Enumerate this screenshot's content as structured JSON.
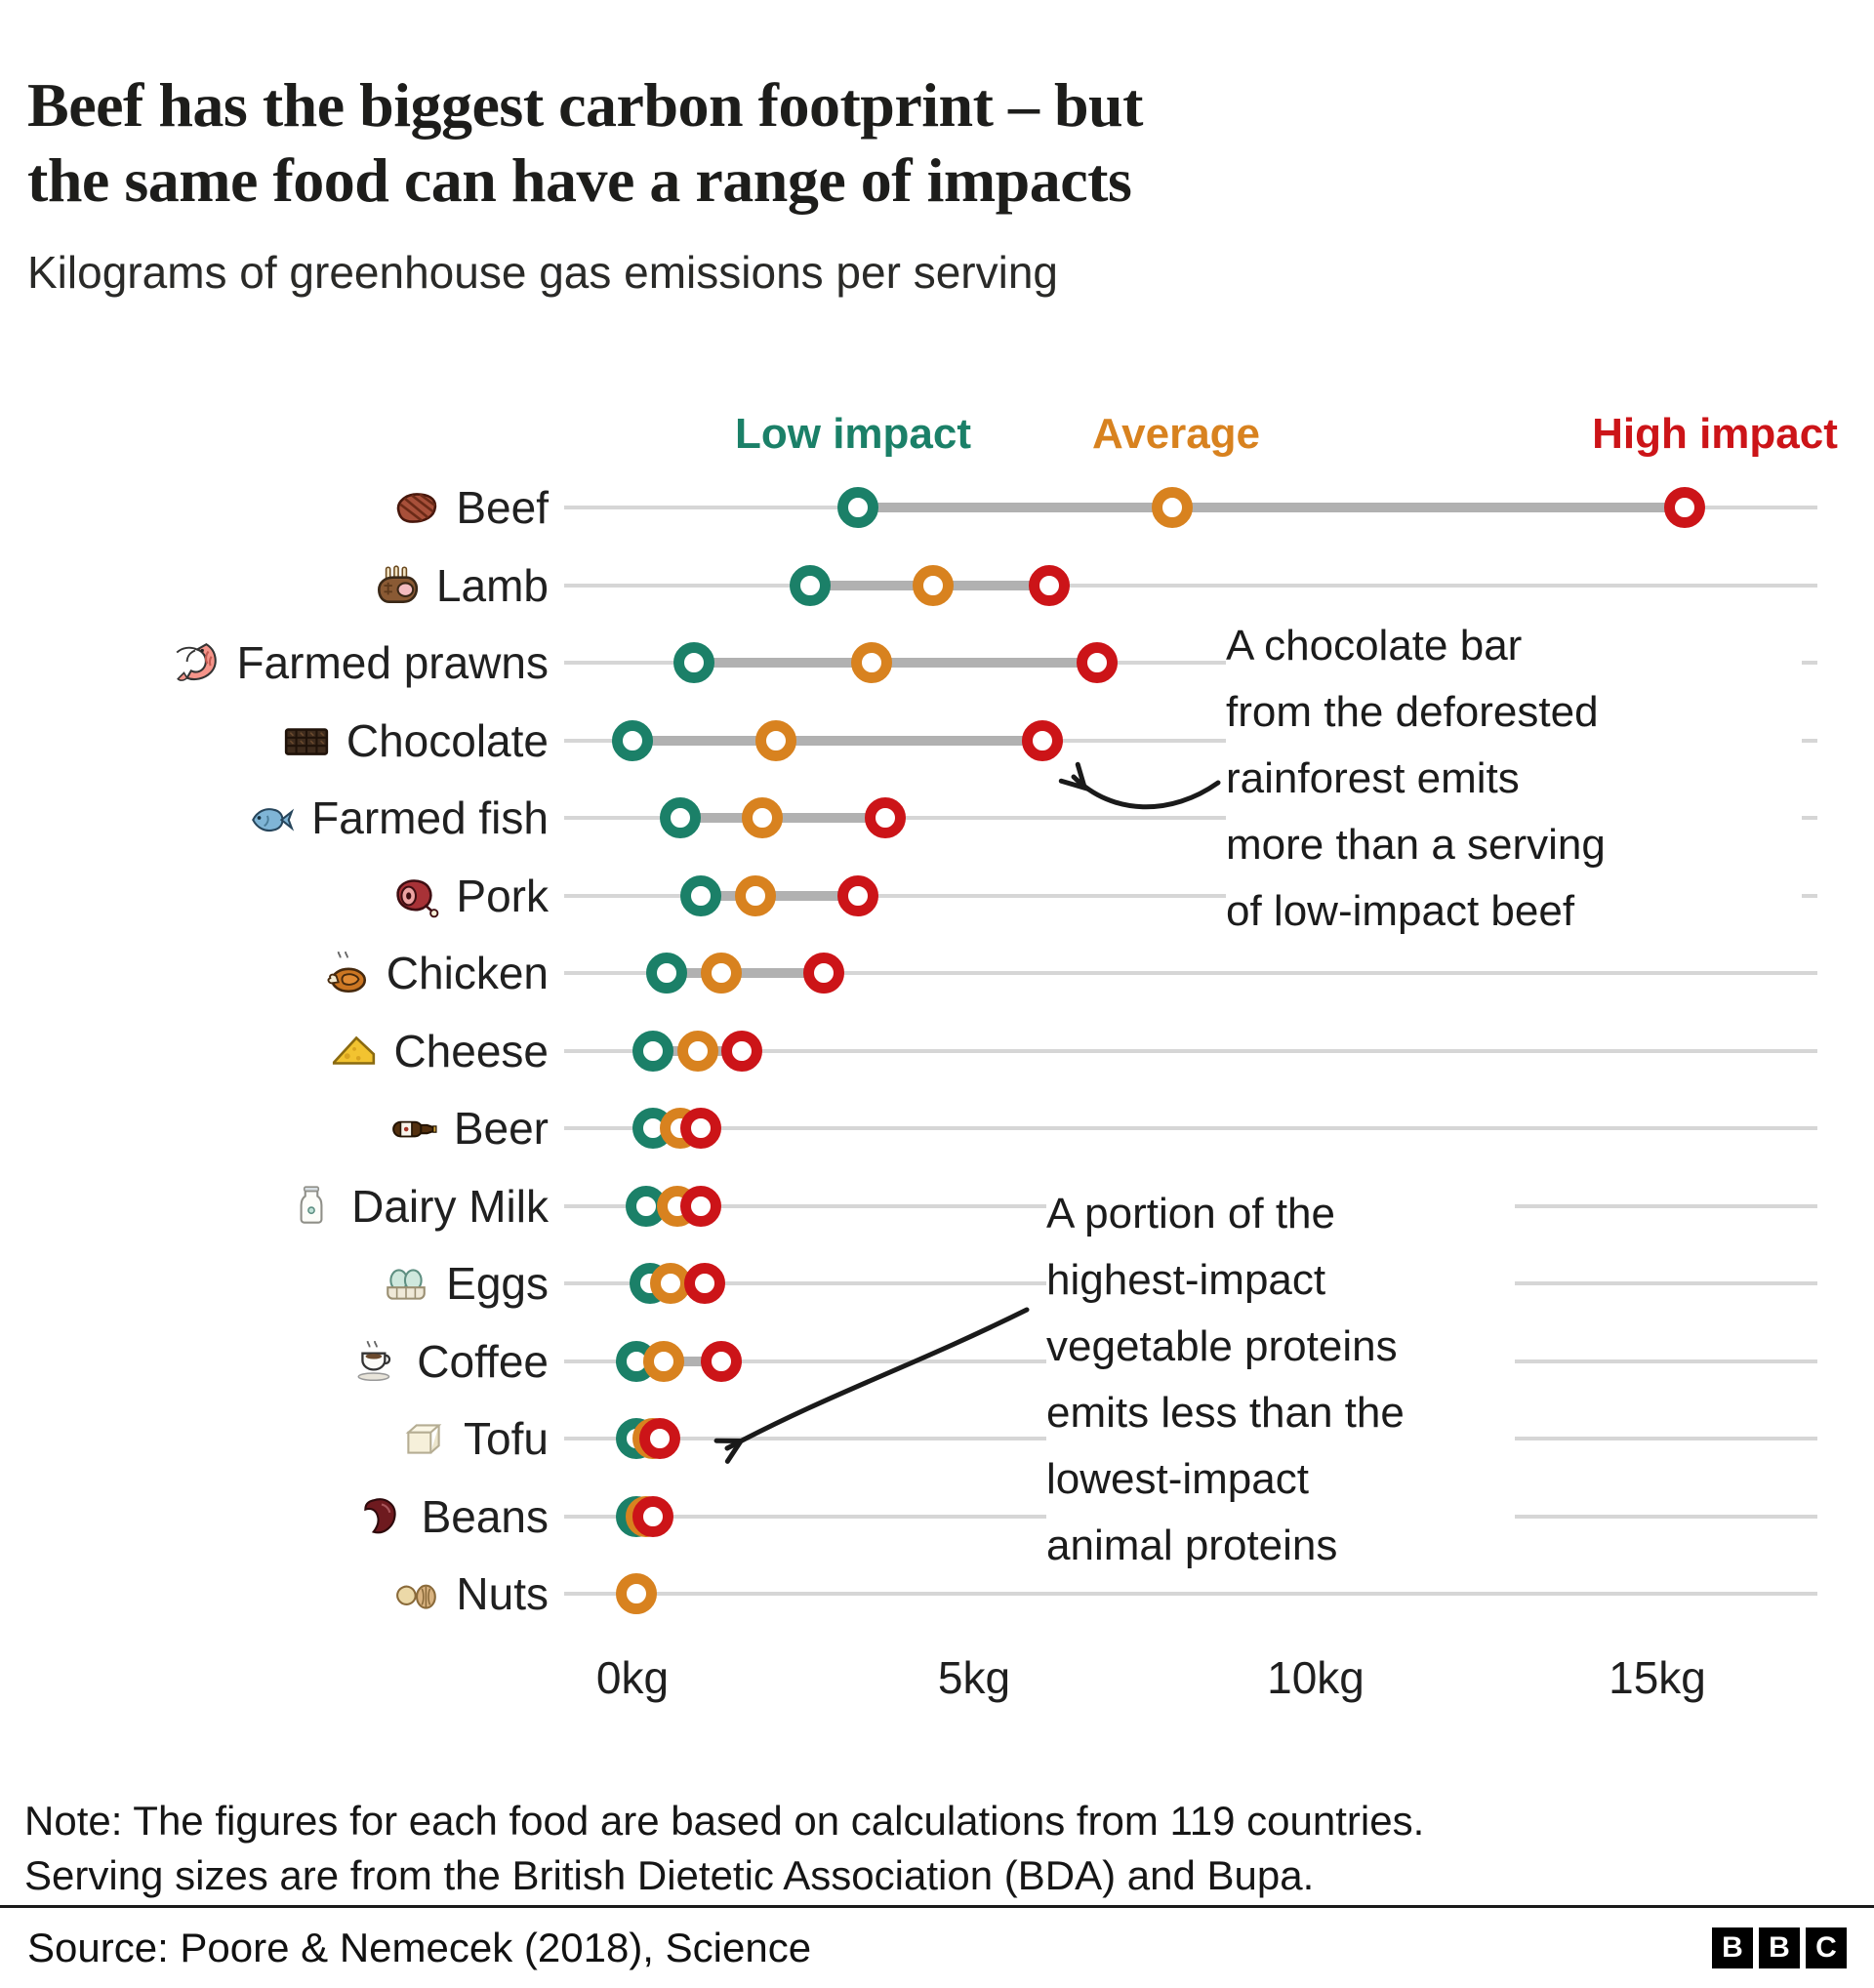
{
  "header": {
    "title_lines": [
      "Beef has the biggest carbon footprint – but",
      "the same food can have a range of impacts"
    ],
    "subtitle": "Kilograms of greenhouse gas emissions per serving"
  },
  "colors": {
    "low": "#1b8068",
    "average": "#d8821f",
    "high": "#cc1418",
    "bar": "#b1b1b1",
    "gridline": "#d6d6d6"
  },
  "chart_data": {
    "type": "dumbbell",
    "title": "Beef has the biggest carbon footprint – but the same food can have a range of impacts",
    "subtitle": "Kilograms of greenhouse gas emissions per serving",
    "xlabel": "kg of greenhouse gas emissions per serving",
    "legend_position": "top",
    "grid": true,
    "series_labels": {
      "low": "Low impact",
      "average": "Average",
      "high": "High impact"
    },
    "x_ticks": [
      {
        "label": "0kg",
        "value": 0
      },
      {
        "label": "5kg",
        "value": 5
      },
      {
        "label": "10kg",
        "value": 10
      },
      {
        "label": "15kg",
        "value": 15
      }
    ],
    "xlim_kg": [
      0,
      17.3
    ],
    "foods": [
      {
        "name": "Beef",
        "icon": "beef-steak",
        "low": 3.3,
        "average": 7.9,
        "high": 15.4
      },
      {
        "name": "Lamb",
        "icon": "lamb-rack",
        "low": 2.6,
        "average": 4.4,
        "high": 6.1
      },
      {
        "name": "Farmed prawns",
        "icon": "prawn",
        "low": 0.9,
        "average": 3.5,
        "high": 6.8
      },
      {
        "name": "Chocolate",
        "icon": "chocolate-bar",
        "low": 0.0,
        "average": 2.1,
        "high": 6.0
      },
      {
        "name": "Farmed fish",
        "icon": "fish",
        "low": 0.7,
        "average": 1.9,
        "high": 3.7
      },
      {
        "name": "Pork",
        "icon": "ham",
        "low": 1.0,
        "average": 1.8,
        "high": 3.3
      },
      {
        "name": "Chicken",
        "icon": "roast-chicken",
        "low": 0.5,
        "average": 1.3,
        "high": 2.8
      },
      {
        "name": "Cheese",
        "icon": "cheese-wedge",
        "low": 0.3,
        "average": 0.95,
        "high": 1.6
      },
      {
        "name": "Beer",
        "icon": "beer-bottle",
        "low": 0.3,
        "average": 0.7,
        "high": 1.0
      },
      {
        "name": "Dairy Milk",
        "icon": "milk-bottle",
        "low": 0.2,
        "average": 0.65,
        "high": 1.0
      },
      {
        "name": "Eggs",
        "icon": "eggs",
        "low": 0.25,
        "average": 0.55,
        "high": 1.05
      },
      {
        "name": "Coffee",
        "icon": "coffee-cup",
        "low": 0.05,
        "average": 0.45,
        "high": 1.3
      },
      {
        "name": "Tofu",
        "icon": "tofu-block",
        "low": 0.05,
        "average": 0.3,
        "high": 0.4
      },
      {
        "name": "Beans",
        "icon": "kidney-bean",
        "low": 0.05,
        "average": 0.2,
        "high": 0.3
      },
      {
        "name": "Nuts",
        "icon": "nuts",
        "low": null,
        "average": 0.05,
        "high": null
      }
    ]
  },
  "annotations": {
    "chocolate": {
      "lines": [
        "A chocolate bar",
        "from the deforested",
        "rainforest emits",
        "more than a serving",
        "of low-impact beef"
      ]
    },
    "veg_protein": {
      "lines": [
        "A portion of the",
        "highest-impact",
        "vegetable proteins",
        "emits less than the",
        "lowest-impact",
        "animal proteins"
      ]
    }
  },
  "footer": {
    "note_lines": [
      "Note: The figures for each food are based on calculations from 119 countries.",
      "Serving sizes are from the British Dietetic Association (BDA) and Bupa."
    ],
    "source": "Source: Poore & Nemecek (2018), Science",
    "logo_letters": [
      "B",
      "B",
      "C"
    ]
  }
}
